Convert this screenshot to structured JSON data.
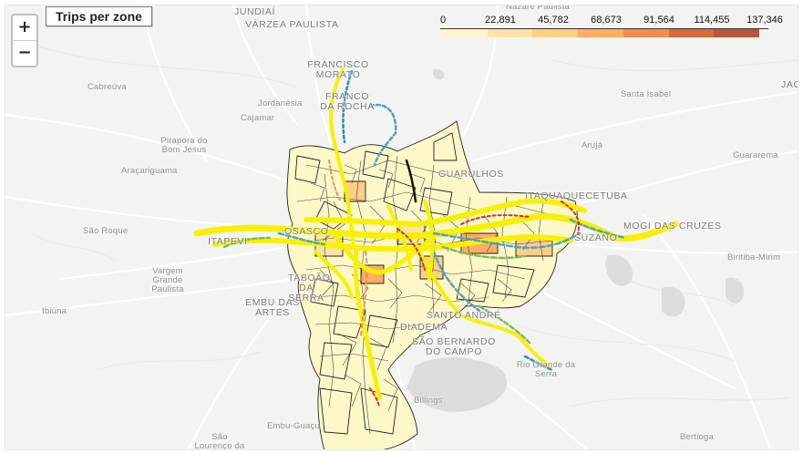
{
  "map": {
    "title": "Trips per zone",
    "zoom_in_label": "+",
    "zoom_out_label": "−",
    "legend": {
      "ticks": [
        "0",
        "22,891",
        "45,782",
        "68,673",
        "91,564",
        "114,455",
        "137,346"
      ],
      "colors": [
        "#fff5cc",
        "#fde3a7",
        "#fdcf85",
        "#fdae61",
        "#f08e50",
        "#d96a38",
        "#b8553b"
      ]
    },
    "places": {
      "jundiai": "JUNDIAÍ",
      "varzea": "VÁRZEA PAULISTA",
      "francisco_morato": "FRANCISCO MORATO",
      "franco_rocha": "FRANCO DA ROCHA",
      "cabreuva": "Cabreúva",
      "jordanesia": "Jordanésia",
      "cajamar": "Cajamar",
      "pirapora": "Pirapora do Bom Jesus",
      "aracariguama": "Araçariguama",
      "sao_roque": "São Roque",
      "vargem": "Vargem Grande Paulista",
      "ibiuna": "Ibiúna",
      "embu_artes": "EMBU DAS ARTES",
      "taboao": "TABOÃO DA SERRA",
      "embu_guacu": "Embu-Guaçu",
      "sao_lourenco": "São Lourenço da Serra",
      "guarulhos": "GUARULHOS",
      "itaquaquecetuba": "ITAQUAQUECETUBA",
      "suzano": "SUZANO",
      "mogi": "MOGI DAS CRUZES",
      "santa_isabel": "Santa Isabel",
      "aruja": "Arujá",
      "guararema": "Guararema",
      "biritiba": "Biritiba-Mirim",
      "santo_andre": "SANTO ANDRÉ",
      "diadema": "DIADEMA",
      "sbc": "SÃO BERNARDO DO CAMPO",
      "rio_grande": "Rio Grande da Serra",
      "billings": "Billings",
      "bertioga": "Bertioga",
      "nazare": "Nazaré Paulista",
      "jacarei": "JAC",
      "osasco": "OSASCO",
      "itapevi": "ITAPEVI"
    }
  }
}
